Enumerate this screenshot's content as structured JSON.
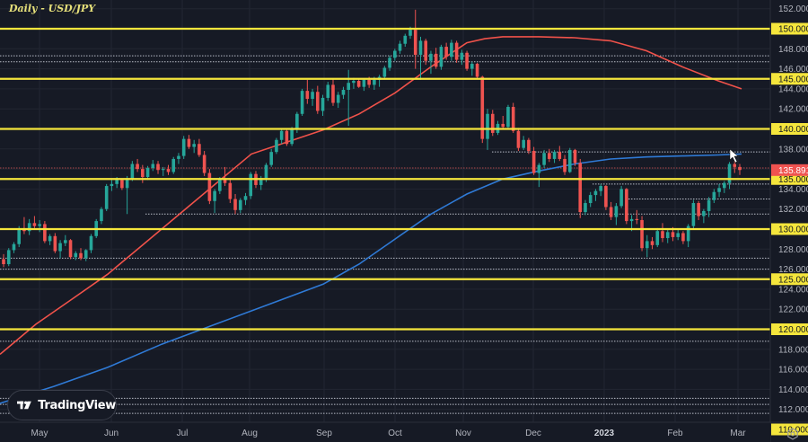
{
  "header": {
    "title": "Daily - USD/JPY"
  },
  "branding": {
    "logo_text": "TradingView"
  },
  "colors": {
    "background": "#161a25",
    "grid": "#222632",
    "up_candle": "#26a69a",
    "down_candle": "#ef5350",
    "ma_red": "#f0524a",
    "ma_blue": "#2f7ad6",
    "key_level": "#f5e63c",
    "dotted_level": "#b8bcc6",
    "last_price_bg": "#ef5350",
    "axis_text": "#b2b5be"
  },
  "price_axis": {
    "ticks": [
      "152.000",
      "148.000",
      "146.000",
      "144.000",
      "142.000",
      "138.000",
      "134.000",
      "132.000",
      "128.000",
      "126.000",
      "124.000",
      "122.000",
      "118.000",
      "116.000",
      "114.000",
      "112.000"
    ],
    "key_level_labels": [
      "150.000",
      "145.000",
      "140.000",
      "135.000",
      "130.000",
      "125.000",
      "120.000",
      "110.000"
    ],
    "last_price_label": "135.891"
  },
  "time_axis": {
    "labels": [
      "May",
      "Jun",
      "Jul",
      "Aug",
      "Sep",
      "Oct",
      "Nov",
      "Dec",
      "2023",
      "Feb",
      "Mar"
    ]
  },
  "chart_data": {
    "type": "candlestick",
    "title": "Daily - USD/JPY",
    "xlabel": "",
    "ylabel": "",
    "ylim": [
      109.5,
      152.5
    ],
    "x_range": [
      "2022-04-22",
      "2023-03-02"
    ],
    "grid": true,
    "last_price": 135.891,
    "key_levels": [
      150,
      145,
      140,
      135,
      130,
      125,
      120,
      110
    ],
    "dotted_levels": [
      {
        "price": 147.3,
        "from": "start"
      },
      {
        "price": 146.7,
        "from": "start"
      },
      {
        "price": 137.7,
        "from": "Nov"
      },
      {
        "price": 136.1,
        "from": "start"
      },
      {
        "price": 134.5,
        "from": "Dec"
      },
      {
        "price": 133.0,
        "from": "Jan"
      },
      {
        "price": 131.5,
        "from": "Jun"
      },
      {
        "price": 127.1,
        "from": "start"
      },
      {
        "price": 126.0,
        "from": "start"
      },
      {
        "price": 118.8,
        "from": "start"
      },
      {
        "price": 113.1,
        "from": "start"
      },
      {
        "price": 112.5,
        "from": "start"
      },
      {
        "price": 111.6,
        "from": "start"
      }
    ],
    "series": [
      {
        "name": "MA (red, 100-day)",
        "color": "#f0524a",
        "points": [
          [
            0,
            117.5
          ],
          [
            40,
            120.5
          ],
          [
            80,
            123.0
          ],
          [
            120,
            125.5
          ],
          [
            160,
            128.5
          ],
          [
            200,
            131.5
          ],
          [
            240,
            134.5
          ],
          [
            280,
            137.5
          ],
          [
            320,
            138.7
          ],
          [
            360,
            139.9
          ],
          [
            400,
            141.5
          ],
          [
            440,
            143.6
          ],
          [
            480,
            146.2
          ],
          [
            520,
            148.6
          ],
          [
            540,
            149.0
          ],
          [
            560,
            149.2
          ],
          [
            600,
            149.2
          ],
          [
            640,
            149.1
          ],
          [
            680,
            148.8
          ],
          [
            720,
            147.8
          ],
          [
            760,
            146.2
          ],
          [
            800,
            144.8
          ],
          [
            826,
            144.0
          ]
        ]
      },
      {
        "name": "MA (blue, 200-day)",
        "color": "#2f7ad6",
        "points": [
          [
            0,
            112.6
          ],
          [
            60,
            114.3
          ],
          [
            120,
            116.2
          ],
          [
            180,
            118.5
          ],
          [
            240,
            120.5
          ],
          [
            300,
            122.5
          ],
          [
            360,
            124.5
          ],
          [
            400,
            126.5
          ],
          [
            440,
            129.0
          ],
          [
            480,
            131.5
          ],
          [
            520,
            133.5
          ],
          [
            560,
            135.0
          ],
          [
            600,
            135.8
          ],
          [
            640,
            136.5
          ],
          [
            680,
            137.0
          ],
          [
            720,
            137.2
          ],
          [
            760,
            137.3
          ],
          [
            800,
            137.4
          ],
          [
            826,
            137.5
          ]
        ]
      }
    ],
    "ohlc": [
      [
        127.0,
        127.5,
        126.2,
        126.5
      ],
      [
        126.5,
        128.1,
        126.3,
        127.9
      ],
      [
        127.9,
        128.7,
        127.6,
        128.5
      ],
      [
        128.5,
        130.3,
        128.2,
        130.0
      ],
      [
        130.0,
        131.2,
        129.5,
        129.8
      ],
      [
        129.8,
        131.0,
        129.4,
        130.6
      ],
      [
        130.6,
        131.3,
        130.1,
        130.3
      ],
      [
        130.3,
        130.9,
        129.7,
        130.5
      ],
      [
        130.5,
        130.8,
        128.6,
        128.8
      ],
      [
        128.8,
        129.5,
        128.4,
        129.3
      ],
      [
        129.3,
        129.6,
        127.6,
        127.8
      ],
      [
        127.8,
        128.9,
        127.1,
        128.6
      ],
      [
        128.6,
        129.4,
        128.3,
        128.9
      ],
      [
        128.9,
        129.0,
        127.0,
        127.2
      ],
      [
        127.2,
        127.8,
        126.9,
        127.6
      ],
      [
        127.6,
        128.1,
        126.9,
        127.1
      ],
      [
        127.1,
        128.0,
        126.8,
        127.9
      ],
      [
        127.9,
        129.5,
        127.6,
        129.3
      ],
      [
        129.3,
        131.0,
        129.1,
        130.8
      ],
      [
        130.8,
        132.2,
        130.5,
        132.0
      ],
      [
        132.0,
        134.5,
        131.8,
        134.3
      ],
      [
        134.3,
        134.9,
        133.8,
        134.5
      ],
      [
        134.5,
        135.2,
        134.1,
        134.9
      ],
      [
        134.9,
        135.0,
        133.9,
        134.1
      ],
      [
        134.1,
        135.3,
        131.5,
        135.0
      ],
      [
        135.0,
        136.8,
        134.8,
        136.5
      ],
      [
        136.5,
        137.0,
        135.7,
        136.0
      ],
      [
        136.0,
        136.4,
        134.6,
        135.2
      ],
      [
        135.2,
        136.3,
        134.9,
        136.1
      ],
      [
        136.1,
        136.9,
        135.8,
        136.5
      ],
      [
        136.5,
        136.8,
        135.5,
        135.9
      ],
      [
        135.9,
        136.2,
        135.3,
        136.0
      ],
      [
        136.0,
        136.4,
        135.4,
        135.7
      ],
      [
        135.7,
        137.2,
        135.5,
        137.0
      ],
      [
        137.0,
        137.6,
        136.5,
        137.3
      ],
      [
        137.3,
        139.3,
        137.0,
        139.0
      ],
      [
        139.0,
        139.4,
        138.0,
        138.2
      ],
      [
        138.2,
        138.9,
        137.6,
        138.5
      ],
      [
        138.5,
        139.0,
        137.2,
        137.4
      ],
      [
        137.4,
        137.8,
        135.3,
        135.6
      ],
      [
        135.6,
        136.0,
        132.5,
        132.8
      ],
      [
        132.8,
        134.0,
        131.6,
        133.8
      ],
      [
        133.8,
        135.2,
        133.5,
        135.0
      ],
      [
        135.0,
        136.2,
        134.3,
        134.6
      ],
      [
        134.6,
        135.0,
        132.6,
        133.0
      ],
      [
        133.0,
        133.5,
        131.5,
        131.9
      ],
      [
        131.9,
        133.1,
        131.6,
        132.9
      ],
      [
        132.9,
        133.6,
        132.4,
        133.3
      ],
      [
        133.3,
        135.7,
        133.0,
        135.5
      ],
      [
        135.5,
        135.8,
        134.1,
        134.4
      ],
      [
        134.4,
        135.3,
        133.9,
        135.1
      ],
      [
        135.1,
        136.6,
        134.7,
        136.4
      ],
      [
        136.4,
        138.0,
        136.2,
        137.7
      ],
      [
        137.7,
        139.1,
        137.5,
        138.9
      ],
      [
        138.9,
        140.0,
        138.5,
        139.8
      ],
      [
        139.8,
        139.9,
        138.3,
        138.5
      ],
      [
        138.5,
        140.2,
        138.3,
        140.0
      ],
      [
        140.0,
        141.7,
        139.6,
        141.5
      ],
      [
        141.5,
        144.0,
        141.3,
        143.8
      ],
      [
        143.8,
        144.9,
        142.5,
        143.0
      ],
      [
        143.0,
        144.0,
        142.3,
        143.7
      ],
      [
        143.7,
        144.3,
        141.5,
        141.8
      ],
      [
        141.8,
        143.4,
        141.3,
        143.1
      ],
      [
        143.1,
        144.7,
        142.8,
        144.4
      ],
      [
        144.4,
        145.0,
        142.3,
        142.6
      ],
      [
        142.6,
        143.7,
        142.1,
        143.4
      ],
      [
        143.4,
        144.2,
        143.0,
        143.9
      ],
      [
        143.9,
        145.9,
        140.3,
        144.6
      ],
      [
        144.6,
        145.1,
        144.0,
        144.8
      ],
      [
        144.8,
        145.0,
        144.1,
        144.2
      ],
      [
        144.2,
        145.0,
        143.8,
        144.9
      ],
      [
        144.9,
        145.2,
        144.1,
        144.4
      ],
      [
        144.4,
        145.2,
        143.9,
        144.9
      ],
      [
        144.9,
        145.4,
        144.2,
        145.2
      ],
      [
        145.2,
        146.3,
        145.0,
        146.1
      ],
      [
        146.1,
        147.3,
        145.8,
        147.1
      ],
      [
        147.1,
        148.0,
        146.8,
        147.8
      ],
      [
        147.8,
        148.8,
        147.5,
        148.5
      ],
      [
        148.5,
        149.5,
        148.2,
        149.3
      ],
      [
        149.3,
        150.2,
        149.0,
        149.9
      ],
      [
        149.9,
        151.9,
        146.0,
        147.4
      ],
      [
        147.4,
        149.2,
        144.9,
        148.8
      ],
      [
        148.8,
        149.0,
        146.4,
        146.8
      ],
      [
        146.8,
        147.8,
        145.5,
        147.5
      ],
      [
        147.5,
        148.1,
        146.0,
        146.2
      ],
      [
        146.2,
        148.4,
        145.9,
        148.2
      ],
      [
        148.2,
        148.6,
        146.9,
        147.2
      ],
      [
        147.2,
        148.9,
        146.8,
        148.6
      ],
      [
        148.6,
        148.8,
        146.6,
        146.9
      ],
      [
        146.9,
        147.9,
        146.4,
        147.6
      ],
      [
        147.6,
        147.8,
        145.8,
        146.0
      ],
      [
        146.0,
        146.7,
        145.3,
        146.5
      ],
      [
        146.5,
        146.6,
        145.0,
        145.2
      ],
      [
        145.2,
        145.3,
        138.6,
        139.0
      ],
      [
        139.0,
        142.0,
        137.9,
        141.5
      ],
      [
        141.5,
        141.9,
        139.3,
        139.6
      ],
      [
        139.6,
        140.8,
        139.4,
        140.5
      ],
      [
        140.5,
        141.3,
        140.0,
        140.2
      ],
      [
        140.2,
        142.4,
        140.0,
        142.2
      ],
      [
        142.2,
        142.6,
        139.6,
        139.8
      ],
      [
        139.8,
        140.1,
        137.8,
        138.1
      ],
      [
        138.1,
        139.3,
        137.9,
        138.9
      ],
      [
        138.9,
        139.1,
        137.5,
        137.8
      ],
      [
        137.8,
        138.2,
        135.4,
        135.6
      ],
      [
        135.6,
        136.6,
        134.2,
        136.4
      ],
      [
        136.4,
        137.9,
        136.1,
        137.6
      ],
      [
        137.6,
        138.0,
        136.7,
        137.0
      ],
      [
        137.0,
        137.9,
        136.6,
        137.7
      ],
      [
        137.7,
        138.3,
        136.8,
        137.0
      ],
      [
        137.0,
        137.4,
        135.4,
        135.7
      ],
      [
        135.7,
        138.1,
        135.6,
        137.9
      ],
      [
        137.9,
        138.0,
        136.3,
        136.6
      ],
      [
        136.6,
        137.0,
        131.1,
        131.7
      ],
      [
        131.7,
        132.9,
        131.4,
        132.6
      ],
      [
        132.6,
        133.7,
        132.2,
        133.4
      ],
      [
        133.4,
        134.0,
        132.8,
        133.8
      ],
      [
        133.8,
        134.5,
        133.3,
        134.3
      ],
      [
        134.3,
        134.4,
        131.9,
        132.2
      ],
      [
        132.2,
        132.7,
        130.9,
        131.2
      ],
      [
        131.2,
        132.6,
        130.4,
        132.3
      ],
      [
        132.3,
        134.3,
        132.1,
        134.0
      ],
      [
        134.0,
        134.1,
        130.5,
        130.8
      ],
      [
        130.8,
        131.4,
        129.8,
        131.0
      ],
      [
        131.0,
        131.9,
        130.5,
        130.9
      ],
      [
        130.9,
        131.3,
        127.8,
        128.1
      ],
      [
        128.1,
        129.4,
        127.2,
        128.8
      ],
      [
        128.8,
        129.2,
        128.0,
        128.4
      ],
      [
        128.4,
        130.1,
        128.2,
        129.8
      ],
      [
        129.8,
        130.6,
        128.7,
        129.1
      ],
      [
        129.1,
        130.0,
        128.6,
        129.7
      ],
      [
        129.7,
        130.2,
        128.8,
        129.2
      ],
      [
        129.2,
        130.0,
        128.9,
        129.6
      ],
      [
        129.6,
        129.8,
        128.5,
        128.8
      ],
      [
        128.8,
        130.5,
        128.2,
        130.3
      ],
      [
        130.3,
        132.9,
        130.0,
        132.6
      ],
      [
        132.6,
        132.8,
        130.9,
        131.3
      ],
      [
        131.3,
        132.0,
        130.6,
        131.8
      ],
      [
        131.8,
        133.2,
        131.2,
        132.9
      ],
      [
        132.9,
        134.0,
        132.6,
        133.7
      ],
      [
        133.7,
        134.5,
        133.2,
        134.1
      ],
      [
        134.1,
        134.8,
        133.6,
        134.6
      ],
      [
        134.6,
        136.7,
        134.0,
        136.5
      ],
      [
        136.5,
        136.9,
        135.6,
        136.2
      ],
      [
        136.2,
        136.5,
        135.4,
        135.9
      ]
    ]
  }
}
